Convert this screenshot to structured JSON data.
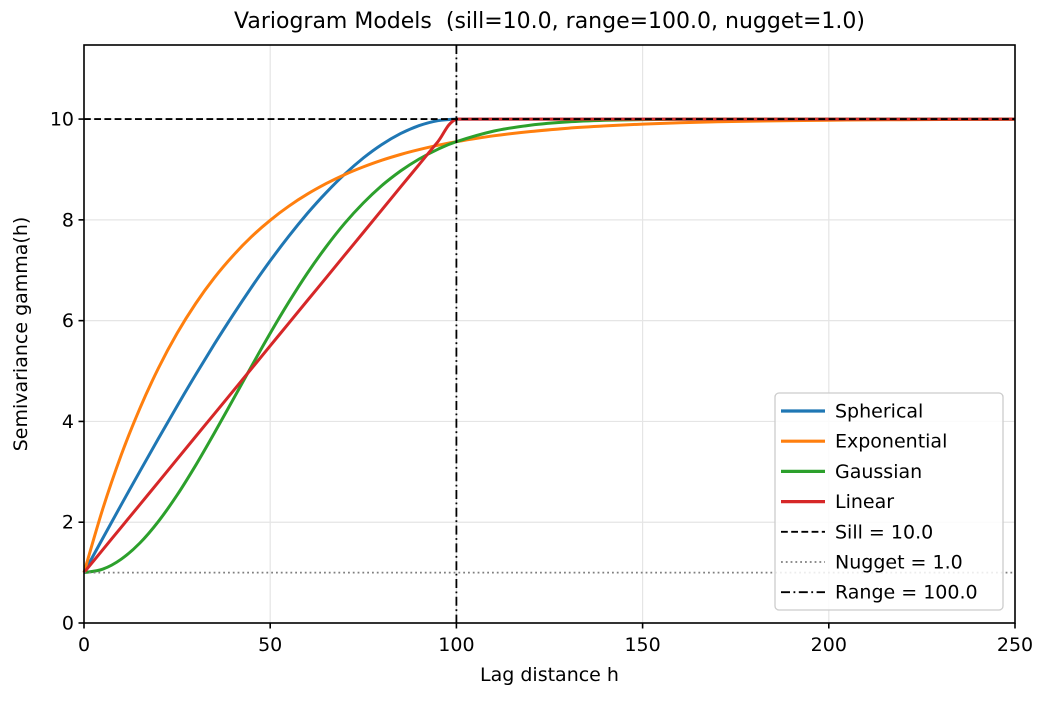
{
  "chart_data": {
    "type": "line",
    "title": "Variogram Models  (sill=10.0, range=100.0, nugget=1.0)",
    "xlabel": "Lag distance h",
    "ylabel": "Semivariance gamma(h)",
    "params": {
      "sill": 10.0,
      "range": 100.0,
      "nugget": 1.0
    },
    "xlim": [
      0,
      250
    ],
    "ylim": [
      0,
      11.47
    ],
    "xticks": [
      0,
      50,
      100,
      150,
      200,
      250
    ],
    "yticks": [
      0,
      2,
      4,
      6,
      8,
      10
    ],
    "grid": true,
    "legend_position": "lower right inside",
    "x": [
      0,
      5,
      10,
      15,
      20,
      25,
      30,
      35,
      40,
      45,
      50,
      55,
      60,
      65,
      70,
      75,
      80,
      85,
      90,
      95,
      100,
      110,
      120,
      130,
      140,
      150,
      160,
      170,
      180,
      190,
      200,
      210,
      220,
      230,
      240,
      250
    ],
    "series": [
      {
        "name": "Spherical",
        "color": "#1f77b4",
        "values": [
          1,
          1.674,
          2.346,
          3.01,
          3.664,
          4.305,
          4.929,
          5.532,
          6.112,
          6.665,
          7.188,
          7.676,
          8.128,
          8.539,
          8.907,
          9.227,
          9.496,
          9.711,
          9.87,
          9.967,
          10,
          10,
          10,
          10,
          10,
          10,
          10,
          10,
          10,
          10,
          10,
          10,
          10,
          10,
          10,
          10
        ]
      },
      {
        "name": "Exponential",
        "color": "#ff7f0e",
        "values": [
          1,
          2.254,
          3.333,
          4.261,
          5.061,
          5.749,
          6.341,
          6.851,
          7.289,
          7.667,
          7.992,
          8.272,
          8.512,
          8.719,
          8.898,
          9.051,
          9.184,
          9.297,
          9.395,
          9.48,
          9.552,
          9.668,
          9.754,
          9.818,
          9.865,
          9.9,
          9.926,
          9.945,
          9.959,
          9.97,
          9.978,
          9.984,
          9.988,
          9.991,
          9.993,
          9.995
        ]
      },
      {
        "name": "Gaussian",
        "color": "#2ca02c",
        "values": [
          1,
          1.067,
          1.266,
          1.587,
          2.018,
          2.539,
          3.13,
          3.768,
          4.431,
          5.098,
          5.749,
          6.368,
          6.944,
          7.466,
          7.931,
          8.335,
          8.681,
          8.969,
          9.208,
          9.4,
          9.552,
          9.761,
          9.88,
          9.944,
          9.975,
          9.989,
          9.996,
          9.999,
          9.999,
          10,
          10,
          10,
          10,
          10,
          10,
          10
        ]
      },
      {
        "name": "Linear",
        "color": "#d62728",
        "values": [
          1,
          1.45,
          1.9,
          2.35,
          2.8,
          3.25,
          3.7,
          4.15,
          4.6,
          5.05,
          5.5,
          5.95,
          6.4,
          6.85,
          7.3,
          7.75,
          8.2,
          8.65,
          9.1,
          9.55,
          10,
          10,
          10,
          10,
          10,
          10,
          10,
          10,
          10,
          10,
          10,
          10,
          10,
          10,
          10,
          10
        ]
      }
    ],
    "reference_lines": [
      {
        "label": "Sill = 10.0",
        "orientation": "horizontal",
        "value": 10.0,
        "linestyle": "dashed",
        "color": "#000000"
      },
      {
        "label": "Nugget = 1.0",
        "orientation": "horizontal",
        "value": 1.0,
        "linestyle": "dotted",
        "color": "#7f7f7f"
      },
      {
        "label": "Range = 100.0",
        "orientation": "vertical",
        "value": 100.0,
        "linestyle": "dashdot",
        "color": "#000000"
      }
    ],
    "colors": {
      "grid": "#e5e5e5",
      "spine": "#000000",
      "legend_border": "#cccccc",
      "background": "#ffffff"
    }
  }
}
